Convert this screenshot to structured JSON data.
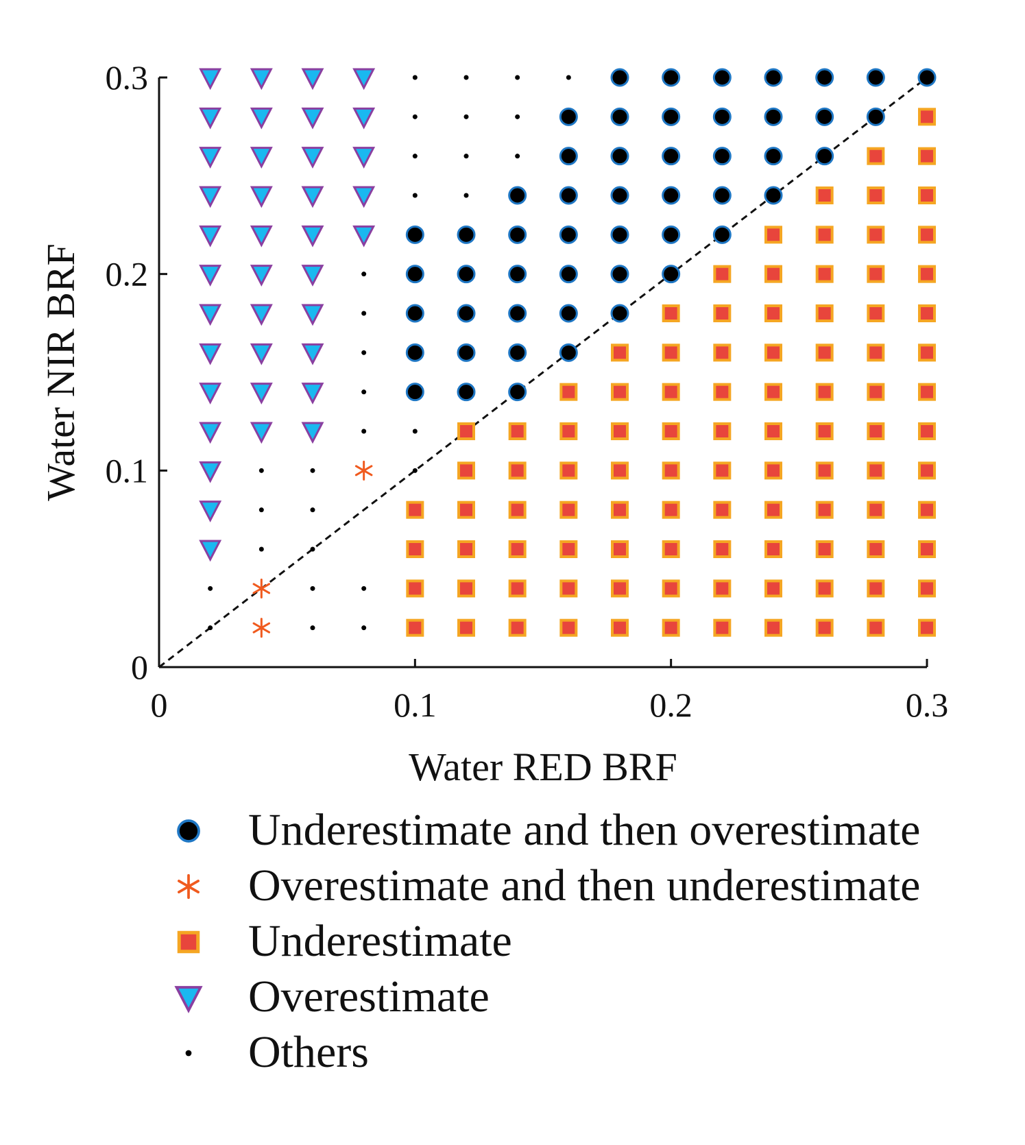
{
  "chart_data": {
    "type": "scatter",
    "title": "",
    "xlabel": "Water RED BRF",
    "ylabel": "Water NIR BRF",
    "xlim": [
      0,
      0.3
    ],
    "ylim": [
      0,
      0.3
    ],
    "xticks": [
      "0",
      "0.1",
      "0.2",
      "0.3"
    ],
    "yticks": [
      "0",
      "0.1",
      "0.2",
      "0.3"
    ],
    "grid": false,
    "legend_position": "below",
    "reference_line": {
      "style": "dashed",
      "from": [
        0,
        0
      ],
      "to": [
        0.3,
        0.3
      ]
    },
    "series": [
      {
        "name": "Underestimate and then overestimate",
        "marker": "circle",
        "fill": "#000000",
        "edge": "#1f77c4",
        "points": [
          [
            0.18,
            0.3
          ],
          [
            0.2,
            0.3
          ],
          [
            0.22,
            0.3
          ],
          [
            0.24,
            0.3
          ],
          [
            0.26,
            0.3
          ],
          [
            0.28,
            0.3
          ],
          [
            0.3,
            0.3
          ],
          [
            0.16,
            0.28
          ],
          [
            0.18,
            0.28
          ],
          [
            0.2,
            0.28
          ],
          [
            0.22,
            0.28
          ],
          [
            0.24,
            0.28
          ],
          [
            0.26,
            0.28
          ],
          [
            0.28,
            0.28
          ],
          [
            0.16,
            0.26
          ],
          [
            0.18,
            0.26
          ],
          [
            0.2,
            0.26
          ],
          [
            0.22,
            0.26
          ],
          [
            0.24,
            0.26
          ],
          [
            0.26,
            0.26
          ],
          [
            0.14,
            0.24
          ],
          [
            0.16,
            0.24
          ],
          [
            0.18,
            0.24
          ],
          [
            0.2,
            0.24
          ],
          [
            0.22,
            0.24
          ],
          [
            0.24,
            0.24
          ],
          [
            0.1,
            0.22
          ],
          [
            0.12,
            0.22
          ],
          [
            0.14,
            0.22
          ],
          [
            0.16,
            0.22
          ],
          [
            0.18,
            0.22
          ],
          [
            0.2,
            0.22
          ],
          [
            0.22,
            0.22
          ],
          [
            0.1,
            0.2
          ],
          [
            0.12,
            0.2
          ],
          [
            0.14,
            0.2
          ],
          [
            0.16,
            0.2
          ],
          [
            0.18,
            0.2
          ],
          [
            0.2,
            0.2
          ],
          [
            0.1,
            0.18
          ],
          [
            0.12,
            0.18
          ],
          [
            0.14,
            0.18
          ],
          [
            0.16,
            0.18
          ],
          [
            0.18,
            0.18
          ],
          [
            0.1,
            0.16
          ],
          [
            0.12,
            0.16
          ],
          [
            0.14,
            0.16
          ],
          [
            0.16,
            0.16
          ],
          [
            0.1,
            0.14
          ],
          [
            0.12,
            0.14
          ],
          [
            0.14,
            0.14
          ]
        ]
      },
      {
        "name": "Overestimate and then underestimate",
        "marker": "asterisk",
        "fill": "#f05a1e",
        "edge": "#f05a1e",
        "points": [
          [
            0.08,
            0.1
          ],
          [
            0.04,
            0.04
          ],
          [
            0.04,
            0.02
          ]
        ]
      },
      {
        "name": "Underestimate",
        "marker": "square",
        "fill": "#e8453c",
        "edge": "#f5a623",
        "points": [
          [
            0.3,
            0.28
          ],
          [
            0.28,
            0.26
          ],
          [
            0.3,
            0.26
          ],
          [
            0.26,
            0.24
          ],
          [
            0.28,
            0.24
          ],
          [
            0.3,
            0.24
          ],
          [
            0.24,
            0.22
          ],
          [
            0.26,
            0.22
          ],
          [
            0.28,
            0.22
          ],
          [
            0.3,
            0.22
          ],
          [
            0.22,
            0.2
          ],
          [
            0.24,
            0.2
          ],
          [
            0.26,
            0.2
          ],
          [
            0.28,
            0.2
          ],
          [
            0.3,
            0.2
          ],
          [
            0.2,
            0.18
          ],
          [
            0.22,
            0.18
          ],
          [
            0.24,
            0.18
          ],
          [
            0.26,
            0.18
          ],
          [
            0.28,
            0.18
          ],
          [
            0.3,
            0.18
          ],
          [
            0.18,
            0.16
          ],
          [
            0.2,
            0.16
          ],
          [
            0.22,
            0.16
          ],
          [
            0.24,
            0.16
          ],
          [
            0.26,
            0.16
          ],
          [
            0.28,
            0.16
          ],
          [
            0.3,
            0.16
          ],
          [
            0.16,
            0.14
          ],
          [
            0.18,
            0.14
          ],
          [
            0.2,
            0.14
          ],
          [
            0.22,
            0.14
          ],
          [
            0.24,
            0.14
          ],
          [
            0.26,
            0.14
          ],
          [
            0.28,
            0.14
          ],
          [
            0.3,
            0.14
          ],
          [
            0.12,
            0.12
          ],
          [
            0.14,
            0.12
          ],
          [
            0.16,
            0.12
          ],
          [
            0.18,
            0.12
          ],
          [
            0.2,
            0.12
          ],
          [
            0.22,
            0.12
          ],
          [
            0.24,
            0.12
          ],
          [
            0.26,
            0.12
          ],
          [
            0.28,
            0.12
          ],
          [
            0.3,
            0.12
          ],
          [
            0.12,
            0.1
          ],
          [
            0.14,
            0.1
          ],
          [
            0.16,
            0.1
          ],
          [
            0.18,
            0.1
          ],
          [
            0.2,
            0.1
          ],
          [
            0.22,
            0.1
          ],
          [
            0.24,
            0.1
          ],
          [
            0.26,
            0.1
          ],
          [
            0.28,
            0.1
          ],
          [
            0.3,
            0.1
          ],
          [
            0.1,
            0.08
          ],
          [
            0.12,
            0.08
          ],
          [
            0.14,
            0.08
          ],
          [
            0.16,
            0.08
          ],
          [
            0.18,
            0.08
          ],
          [
            0.2,
            0.08
          ],
          [
            0.22,
            0.08
          ],
          [
            0.24,
            0.08
          ],
          [
            0.26,
            0.08
          ],
          [
            0.28,
            0.08
          ],
          [
            0.3,
            0.08
          ],
          [
            0.1,
            0.06
          ],
          [
            0.12,
            0.06
          ],
          [
            0.14,
            0.06
          ],
          [
            0.16,
            0.06
          ],
          [
            0.18,
            0.06
          ],
          [
            0.2,
            0.06
          ],
          [
            0.22,
            0.06
          ],
          [
            0.24,
            0.06
          ],
          [
            0.26,
            0.06
          ],
          [
            0.28,
            0.06
          ],
          [
            0.3,
            0.06
          ],
          [
            0.1,
            0.04
          ],
          [
            0.12,
            0.04
          ],
          [
            0.14,
            0.04
          ],
          [
            0.16,
            0.04
          ],
          [
            0.18,
            0.04
          ],
          [
            0.2,
            0.04
          ],
          [
            0.22,
            0.04
          ],
          [
            0.24,
            0.04
          ],
          [
            0.26,
            0.04
          ],
          [
            0.28,
            0.04
          ],
          [
            0.3,
            0.04
          ],
          [
            0.1,
            0.02
          ],
          [
            0.12,
            0.02
          ],
          [
            0.14,
            0.02
          ],
          [
            0.16,
            0.02
          ],
          [
            0.18,
            0.02
          ],
          [
            0.2,
            0.02
          ],
          [
            0.22,
            0.02
          ],
          [
            0.24,
            0.02
          ],
          [
            0.26,
            0.02
          ],
          [
            0.28,
            0.02
          ],
          [
            0.3,
            0.02
          ]
        ]
      },
      {
        "name": "Overestimate",
        "marker": "triangle-down",
        "fill": "#1ab8f0",
        "edge": "#8a3fa0",
        "points": [
          [
            0.02,
            0.3
          ],
          [
            0.04,
            0.3
          ],
          [
            0.06,
            0.3
          ],
          [
            0.08,
            0.3
          ],
          [
            0.02,
            0.28
          ],
          [
            0.04,
            0.28
          ],
          [
            0.06,
            0.28
          ],
          [
            0.08,
            0.28
          ],
          [
            0.02,
            0.26
          ],
          [
            0.04,
            0.26
          ],
          [
            0.06,
            0.26
          ],
          [
            0.08,
            0.26
          ],
          [
            0.02,
            0.24
          ],
          [
            0.04,
            0.24
          ],
          [
            0.06,
            0.24
          ],
          [
            0.08,
            0.24
          ],
          [
            0.02,
            0.22
          ],
          [
            0.04,
            0.22
          ],
          [
            0.06,
            0.22
          ],
          [
            0.08,
            0.22
          ],
          [
            0.02,
            0.2
          ],
          [
            0.04,
            0.2
          ],
          [
            0.06,
            0.2
          ],
          [
            0.02,
            0.18
          ],
          [
            0.04,
            0.18
          ],
          [
            0.06,
            0.18
          ],
          [
            0.02,
            0.16
          ],
          [
            0.04,
            0.16
          ],
          [
            0.06,
            0.16
          ],
          [
            0.02,
            0.14
          ],
          [
            0.04,
            0.14
          ],
          [
            0.06,
            0.14
          ],
          [
            0.02,
            0.12
          ],
          [
            0.04,
            0.12
          ],
          [
            0.06,
            0.12
          ],
          [
            0.02,
            0.1
          ],
          [
            0.02,
            0.08
          ],
          [
            0.02,
            0.06
          ]
        ]
      },
      {
        "name": "Others",
        "marker": "dot",
        "fill": "#000000",
        "edge": "#000000",
        "points": [
          [
            0.1,
            0.3
          ],
          [
            0.12,
            0.3
          ],
          [
            0.14,
            0.3
          ],
          [
            0.16,
            0.3
          ],
          [
            0.1,
            0.28
          ],
          [
            0.12,
            0.28
          ],
          [
            0.14,
            0.28
          ],
          [
            0.1,
            0.26
          ],
          [
            0.12,
            0.26
          ],
          [
            0.14,
            0.26
          ],
          [
            0.1,
            0.24
          ],
          [
            0.12,
            0.24
          ],
          [
            0.08,
            0.2
          ],
          [
            0.08,
            0.18
          ],
          [
            0.08,
            0.16
          ],
          [
            0.08,
            0.14
          ],
          [
            0.08,
            0.12
          ],
          [
            0.1,
            0.12
          ],
          [
            0.04,
            0.1
          ],
          [
            0.06,
            0.1
          ],
          [
            0.1,
            0.1
          ],
          [
            0.04,
            0.08
          ],
          [
            0.06,
            0.08
          ],
          [
            0.04,
            0.06
          ],
          [
            0.06,
            0.06
          ],
          [
            0.02,
            0.04
          ],
          [
            0.06,
            0.04
          ],
          [
            0.08,
            0.04
          ],
          [
            0.02,
            0.02
          ],
          [
            0.06,
            0.02
          ],
          [
            0.08,
            0.02
          ]
        ]
      }
    ]
  }
}
